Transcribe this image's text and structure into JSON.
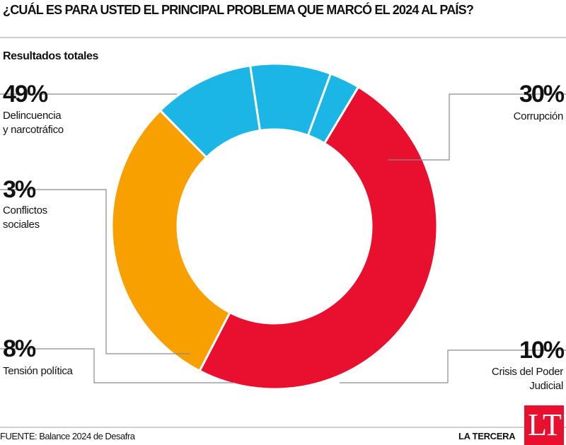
{
  "title": "¿CUÁL ES PARA USTED EL PRINCIPAL PROBLEMA QUE MARCÓ EL 2024 AL PAÍS?",
  "subtitle": "Resultados totales",
  "source": "FUENTE: Balance 2024 de Desafra",
  "brand": "LA TERCERA",
  "logo_text": "LT",
  "colors": {
    "red": "#e8102e",
    "orange": "#f7a000",
    "blue": "#1bb6e6",
    "logo": "#e8102e"
  },
  "chart_data": {
    "type": "pie",
    "title": "¿CUÁL ES PARA USTED EL PRINCIPAL PROBLEMA QUE MARCÓ EL 2024 AL PAÍS?",
    "subtitle": "Resultados totales",
    "slices": [
      {
        "label": "Delincuencia y narcotráfico",
        "value": 49,
        "display": "49%",
        "color": "#e8102e"
      },
      {
        "label": "Corrupción",
        "value": 30,
        "display": "30%",
        "color": "#f7a000"
      },
      {
        "label": "Crisis del Poder Judicial",
        "value": 10,
        "display": "10%",
        "color": "#1bb6e6"
      },
      {
        "label": "Tensión política",
        "value": 8,
        "display": "8%",
        "color": "#1bb6e6"
      },
      {
        "label": "Conflictos sociales",
        "value": 3,
        "display": "3%",
        "color": "#1bb6e6"
      }
    ],
    "labels": {
      "delincuencia": {
        "pct": "49%",
        "line1": "Delincuencia",
        "line2": "y narcotráfico"
      },
      "corrupcion": {
        "pct": "30%",
        "line1": "Corrupción"
      },
      "conflictos": {
        "pct": "3%",
        "line1": "Conflictos",
        "line2": "sociales"
      },
      "tension": {
        "pct": "8%",
        "line1": "Tensión política"
      },
      "crisis": {
        "pct": "10%",
        "line1": "Crisis del Poder",
        "line2": "Judicial"
      }
    }
  }
}
